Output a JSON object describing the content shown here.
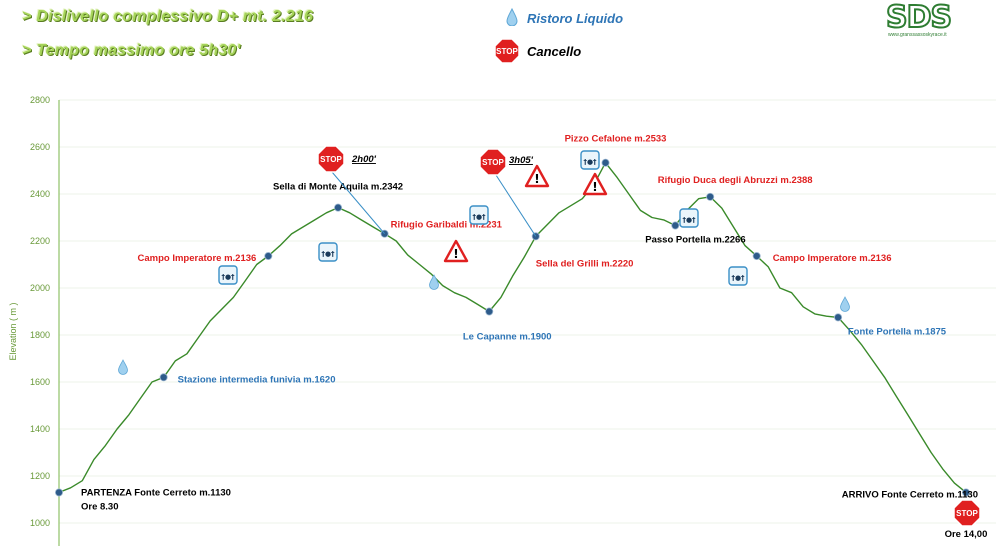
{
  "header": {
    "line1": "> Dislivello complessivo D+ mt. 2.216",
    "line2": "> Tempo massimo ore 5h30'"
  },
  "legend": {
    "water_label": "Ristoro Liquido",
    "gate_label": "Cancello",
    "water_color": "#2e75b6",
    "gate_color": "#000000"
  },
  "logo": {
    "text": "SDS",
    "url": "www.granssassoskyrace.it"
  },
  "colors": {
    "profile": "#3a8a2a",
    "axis": "#7ab648",
    "marker": "#2e5b8a",
    "red_label": "#e02020",
    "blue_label": "#2e75b6",
    "dark_label": "#000000"
  },
  "chart_data": {
    "type": "area",
    "ylabel": "Elevation ( m )",
    "ylim": [
      1000,
      2800
    ],
    "yticks": [
      1000,
      1200,
      1400,
      1600,
      1800,
      2000,
      2200,
      2400,
      2600,
      2800
    ],
    "grid": true,
    "profile": [
      1130,
      1150,
      1180,
      1270,
      1330,
      1400,
      1460,
      1530,
      1600,
      1620,
      1690,
      1720,
      1790,
      1860,
      1910,
      1960,
      2030,
      2100,
      2136,
      2180,
      2230,
      2260,
      2290,
      2320,
      2342,
      2320,
      2290,
      2260,
      2231,
      2200,
      2140,
      2100,
      2060,
      2010,
      1980,
      1960,
      1930,
      1900,
      1960,
      2050,
      2130,
      2220,
      2270,
      2320,
      2350,
      2380,
      2440,
      2533,
      2470,
      2400,
      2330,
      2300,
      2290,
      2266,
      2330,
      2380,
      2388,
      2340,
      2260,
      2180,
      2136,
      2090,
      2000,
      1980,
      1920,
      1890,
      1880,
      1875,
      1820,
      1760,
      1690,
      1620,
      1540,
      1460,
      1380,
      1300,
      1230,
      1170,
      1130
    ],
    "points": [
      {
        "idx": 0,
        "label": "PARTENZA Fonte Cerreto m.1130",
        "sub": "Ore 8.30",
        "color": "dark"
      },
      {
        "idx": 9,
        "label": "Stazione intermedia funivia m.1620",
        "color": "blue"
      },
      {
        "idx": 18,
        "label": "Campo Imperatore m.2136",
        "color": "red"
      },
      {
        "idx": 24,
        "label": "Sella di Monte Aquila m.2342",
        "color": "dark"
      },
      {
        "idx": 28,
        "label": "Rifugio Garibaldi m.2231",
        "color": "red"
      },
      {
        "idx": 37,
        "label": "Le Capanne m.1900",
        "color": "blue"
      },
      {
        "idx": 41,
        "label": "Sella del Grilli m.2220",
        "color": "red"
      },
      {
        "idx": 47,
        "label": "Pizzo Cefalone m.2533",
        "color": "red"
      },
      {
        "idx": 53,
        "label": "Passo Portella m.2266",
        "color": "dark"
      },
      {
        "idx": 56,
        "label": "Rifugio Duca degli Abruzzi m.2388",
        "color": "red"
      },
      {
        "idx": 60,
        "label": "Campo Imperatore m.2136",
        "color": "red"
      },
      {
        "idx": 67,
        "label": "Fonte Portella m.1875",
        "color": "blue"
      },
      {
        "idx": 78,
        "label": "ARRIVO Fonte Cerreto m.1130",
        "color": "dark"
      }
    ],
    "gates": [
      {
        "time": "2h00'"
      },
      {
        "time": "3h05'"
      },
      {
        "time": "Ore 14,00"
      }
    ],
    "stop_text": "STOP"
  }
}
